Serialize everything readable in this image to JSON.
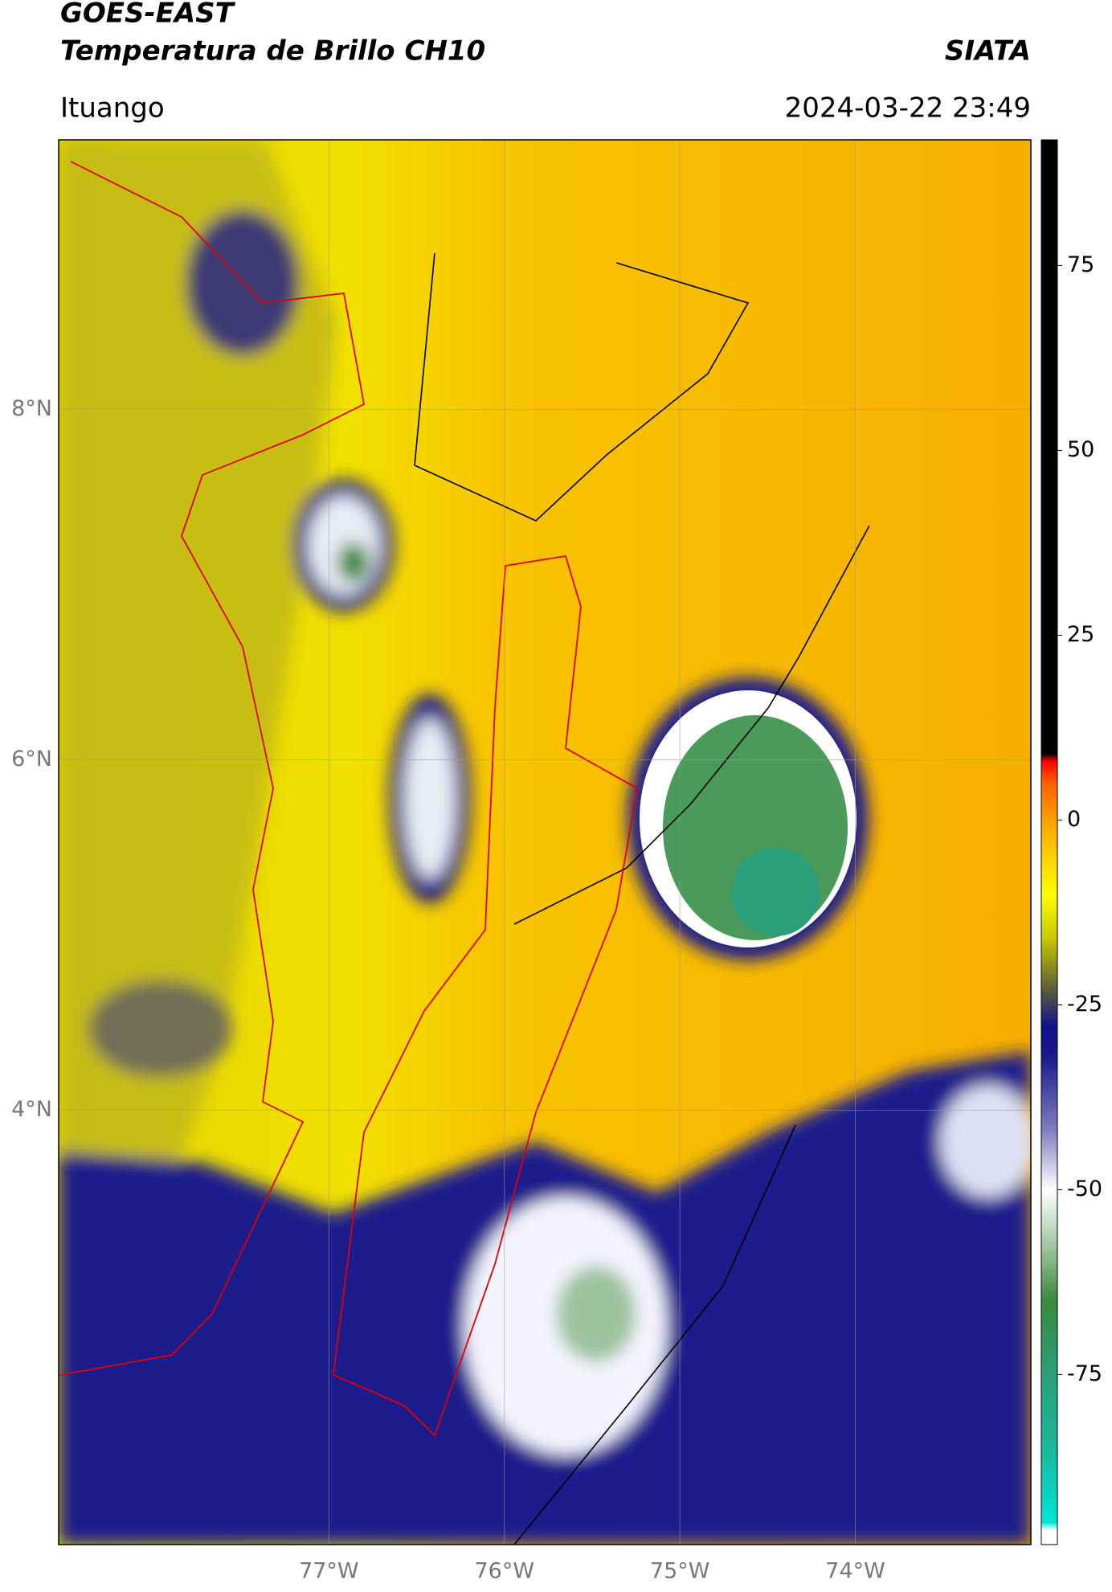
{
  "chart_data": {
    "type": "map",
    "title": "GOES-EAST",
    "subtitle": "Temperatura de Brillo CH10",
    "source": "SIATA",
    "location": "Ituango",
    "datetime": "2024-03-22 23:49",
    "xlim": [
      -78.54,
      -73.0
    ],
    "ylim": [
      1.52,
      9.54
    ],
    "xticks": [
      {
        "value": -77,
        "label": "77°W"
      },
      {
        "value": -76,
        "label": "76°W"
      },
      {
        "value": -75,
        "label": "75°W"
      },
      {
        "value": -74,
        "label": "74°W"
      }
    ],
    "yticks": [
      {
        "value": 8,
        "label": "8°N"
      },
      {
        "value": 6,
        "label": "6°N"
      },
      {
        "value": 4,
        "label": "4°N"
      }
    ],
    "grid": true,
    "colorbar": {
      "lim": [
        -98,
        92
      ],
      "ticks": [
        75,
        50,
        25,
        0,
        -25,
        -50,
        -75
      ],
      "colormap": [
        {
          "value": -98,
          "color": "#ffffff"
        },
        {
          "value": -96,
          "color": "#ffffff"
        },
        {
          "value": -95,
          "color": "#00e5d8"
        },
        {
          "value": -85,
          "color": "#1ab89a"
        },
        {
          "value": -75,
          "color": "#2aa07a"
        },
        {
          "value": -65,
          "color": "#3a8a3a"
        },
        {
          "value": -58,
          "color": "#9cc29c"
        },
        {
          "value": -50,
          "color": "#ffffff"
        },
        {
          "value": -42,
          "color": "#8080c0"
        },
        {
          "value": -32,
          "color": "#1a1a8c"
        },
        {
          "value": -28,
          "color": "#10108a"
        },
        {
          "value": -22,
          "color": "#6a6a30"
        },
        {
          "value": -16,
          "color": "#c8c800"
        },
        {
          "value": -10,
          "color": "#ffff00"
        },
        {
          "value": -4,
          "color": "#ffc800"
        },
        {
          "value": 0,
          "color": "#ff9f00"
        },
        {
          "value": 5,
          "color": "#ff6000"
        },
        {
          "value": 8,
          "color": "#ff0000"
        },
        {
          "value": 9,
          "color": "#000000"
        },
        {
          "value": 92,
          "color": "#000000"
        }
      ]
    }
  }
}
